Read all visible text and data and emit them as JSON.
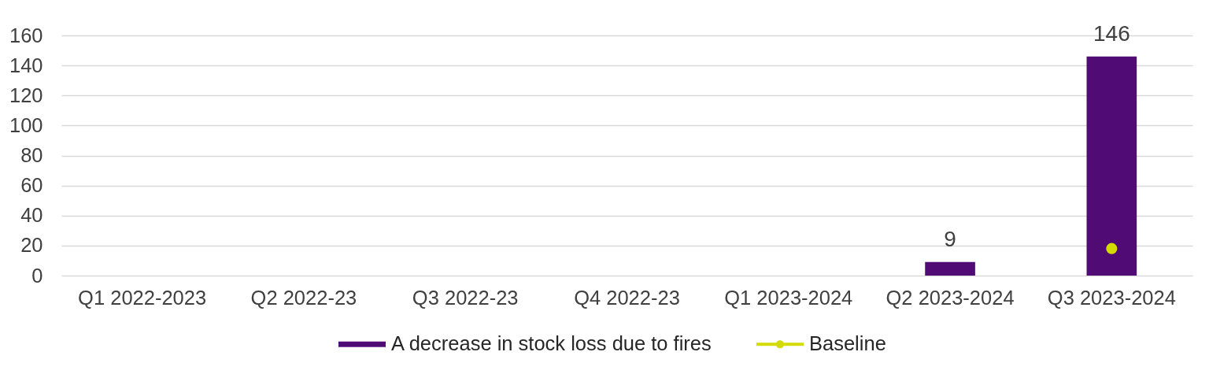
{
  "chart_data": {
    "type": "bar",
    "categories": [
      "Q1 2022-2023",
      "Q2 2022-23",
      "Q3 2022-23",
      "Q4 2022-23",
      "Q1 2023-2024",
      "Q2 2023-2024",
      "Q3 2023-2024"
    ],
    "series": [
      {
        "name": "A decrease in stock loss due to fires",
        "color": "#500c74",
        "values": [
          null,
          null,
          null,
          null,
          null,
          9,
          146
        ],
        "value_labels": [
          null,
          null,
          null,
          null,
          null,
          "9",
          "146"
        ]
      },
      {
        "name": "Baseline",
        "type": "line",
        "color": "#d3db00",
        "values": [
          null,
          null,
          null,
          null,
          null,
          null,
          18
        ]
      }
    ],
    "marker": "circle",
    "ylim": [
      0,
      160
    ],
    "yticks": [
      0,
      20,
      40,
      60,
      80,
      100,
      120,
      140,
      160
    ],
    "grid": "y",
    "legend": "bottom"
  }
}
